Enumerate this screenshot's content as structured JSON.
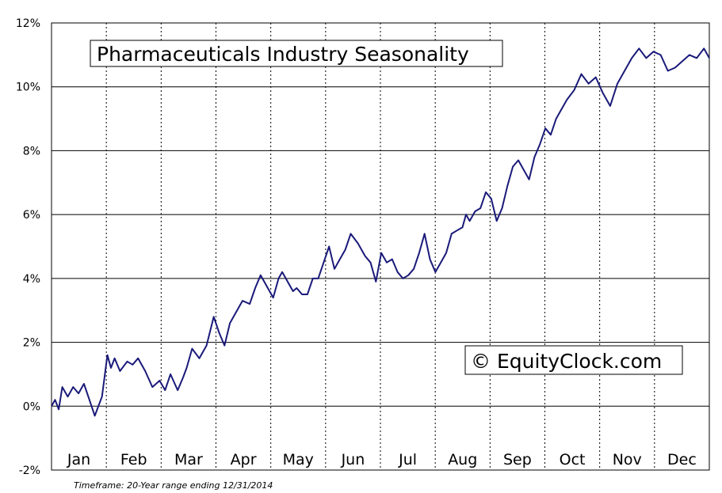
{
  "chart_data": {
    "type": "line",
    "title": "Pharmaceuticals Industry Seasonality",
    "watermark": "© EquityClock.com",
    "footnote": "Timeframe: 20-Year range ending 12/31/2014",
    "y_ticks": [
      "12%",
      "10%",
      "8%",
      "6%",
      "4%",
      "2%",
      "0%",
      "-2%"
    ],
    "y_tick_values": [
      12,
      10,
      8,
      6,
      4,
      2,
      0,
      -2
    ],
    "months": [
      "Jan",
      "Feb",
      "Mar",
      "Apr",
      "May",
      "Jun",
      "Jul",
      "Aug",
      "Sep",
      "Oct",
      "Nov",
      "Dec"
    ],
    "ylim": [
      -2,
      12
    ],
    "xlim": [
      0,
      365
    ],
    "grid": "horizontal solid lines, dotted vertical month separators",
    "colors": {
      "line": "#1a1a7a",
      "grid": "#000000"
    },
    "series": [
      {
        "x": [
          0,
          2,
          4,
          6,
          9,
          12,
          15,
          18,
          21,
          24,
          28,
          31,
          33,
          35,
          38,
          42,
          45,
          48,
          52,
          56,
          60,
          63,
          66,
          70,
          73,
          75,
          78,
          82,
          86,
          90,
          93,
          96,
          99,
          102,
          106,
          110,
          113,
          116,
          120,
          123,
          126,
          128,
          131,
          134,
          136,
          139,
          142,
          145,
          148,
          151,
          154,
          157,
          160,
          163,
          166,
          170,
          174,
          177,
          180,
          183,
          186,
          189,
          192,
          195,
          198,
          201,
          204,
          207,
          210,
          213,
          216,
          219,
          222,
          225,
          228,
          230,
          232,
          235,
          238,
          241,
          244,
          247,
          250,
          253,
          256,
          259,
          262,
          265,
          268,
          271,
          274,
          277,
          280,
          283,
          286,
          290,
          294,
          298,
          302,
          306,
          310,
          314,
          318,
          322,
          326,
          330,
          334,
          338,
          342,
          346,
          350,
          354,
          358,
          362,
          365
        ],
        "y": [
          0.0,
          0.2,
          -0.1,
          0.6,
          0.3,
          0.6,
          0.4,
          0.7,
          0.2,
          -0.3,
          0.3,
          1.6,
          1.2,
          1.5,
          1.1,
          1.4,
          1.3,
          1.5,
          1.1,
          0.6,
          0.8,
          0.5,
          1.0,
          0.5,
          0.9,
          1.2,
          1.8,
          1.5,
          1.9,
          2.8,
          2.3,
          1.9,
          2.6,
          2.9,
          3.3,
          3.2,
          3.7,
          4.1,
          3.7,
          3.4,
          4.0,
          4.2,
          3.9,
          3.6,
          3.7,
          3.5,
          3.5,
          4.0,
          4.0,
          4.5,
          5.0,
          4.3,
          4.6,
          4.9,
          5.4,
          5.1,
          4.7,
          4.5,
          3.9,
          4.8,
          4.5,
          4.6,
          4.2,
          4.0,
          4.1,
          4.3,
          4.8,
          5.4,
          4.6,
          4.2,
          4.5,
          4.8,
          5.4,
          5.5,
          5.6,
          6.0,
          5.8,
          6.1,
          6.2,
          6.7,
          6.5,
          5.8,
          6.2,
          6.9,
          7.5,
          7.7,
          7.4,
          7.1,
          7.8,
          8.2,
          8.7,
          8.5,
          9.0,
          9.3,
          9.6,
          9.9,
          10.4,
          10.1,
          10.3,
          9.8,
          9.4,
          10.1,
          10.5,
          10.9,
          11.2,
          10.9,
          11.1,
          11.0,
          10.5,
          10.6,
          10.8,
          11.0,
          10.9,
          11.2,
          10.9
        ]
      }
    ]
  }
}
